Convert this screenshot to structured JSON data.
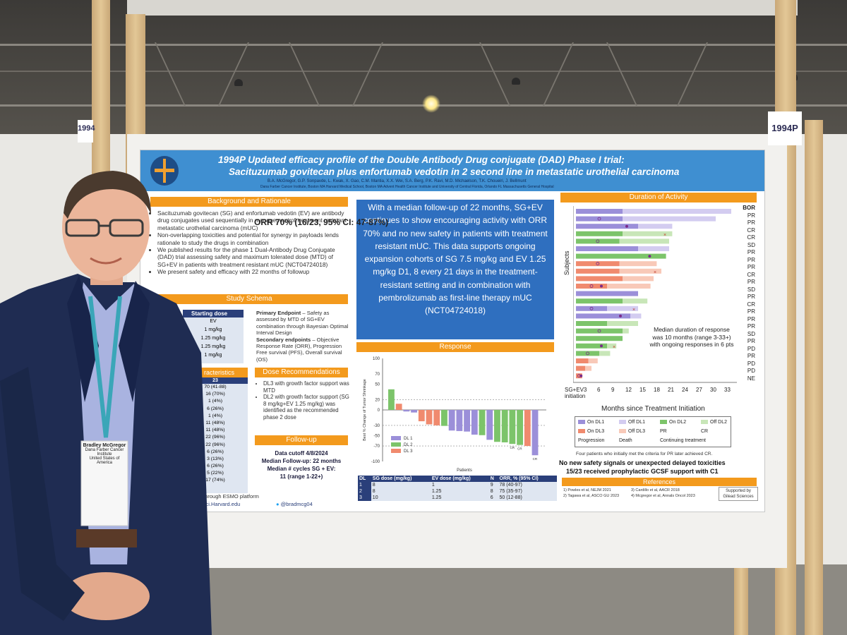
{
  "booth": {
    "number_right": "1994P",
    "number_left": "1994"
  },
  "poster": {
    "title_line1": "1994P Updated efficacy profile of the Double Antibody Drug conjugate (DAD) Phase I trial:",
    "title_line2": "Sacituzumab govitecan plus enfortumab vedotin in 2 second line in metastatic urothelial carcinoma",
    "authors": "B.A. McGregor, G.P. Sonpavde, L. Kwak, X. Gao, C.M. Mantia, X.X. Wei, S.A. Berg, P.K. Ravi, M.D. Michaelson, T.K. Choueiri, J. Bellmunt",
    "affiliations": "Dana Farber Cancer Institute, Boston MA  Harvard Medical School, Boston MA  Advent Health Cancer Institute and University of Central Florida, Orlando FL  Massachusetts General Hospital",
    "sections": {
      "background": "Background and Rationale",
      "schema": "Study Schema",
      "dose_rec": "Dose Recommendations",
      "followup": "Follow-up",
      "response": "Response",
      "duration": "Duration of Activity",
      "references": "References"
    },
    "background_bullets": [
      "Sacituzumab govitecan (SG) and enfortumab vedotin (EV) are antibody drug conjugates used sequentially in management of treatment resistant metastatic urothelial carcinoma (mUC)",
      "Non-overlapping toxicities and potential for synergy in payloads lends rationale to study the drugs in combination",
      "We published results for the phase 1 Dual-Antibody Drug Conjugate (DAD) trial assessing safety and maximum tolerated dose (MTD) of SG+EV in patients with treatment resistant mUC (NCT04724018)",
      "We present safety and efficacy with 22 months of followup"
    ],
    "schema": {
      "starting_dose": "Starting dose",
      "ev": "EV",
      "doses": [
        "1 mg/kg",
        "1.25 mg/kg",
        "1.25 mg/kg",
        "1 mg/kg"
      ],
      "primary_label": "Primary Endpoint",
      "primary_text": " – Safety as assessed by MTD of SG+EV combination through Bayesian Optimal Interval Design",
      "secondary_label": "Secondary endpoints",
      "secondary_text": " – Objective Response Rate (ORR), Progression Free survival (PFS), Overall survival (OS)"
    },
    "characteristics": {
      "header": "racteristics",
      "n": "23",
      "values": [
        "70 (41-88)",
        "16 (70%)",
        "1 (4%)",
        "6 (26%)",
        "1 (4%)",
        "11 (48%)",
        "11 (48%)",
        "22 (96%)",
        "22 (96%)",
        "6 (26%)",
        "3 (13%)",
        "6 (26%)",
        "5 (22%)",
        "17 (74%)"
      ]
    },
    "dose_recommendations": [
      "DL3 with growth factor support was MTD",
      "DL2 with growth factor support (SG 8 mg/kg+EV 1.25 mg/kg) was identified as the recommended phase 2 dose"
    ],
    "followup": {
      "cutoff": "Data cutoff 4/8/2024",
      "median_fu": "Median Follow-up: 22 months",
      "cycles": "Median # cycles SG + EV:",
      "cycles_range": "11 (range 1-22+)"
    },
    "footer_left": {
      "registered": "ered through ESMO platform",
      "email": "or@dfci.Harvard.edu",
      "twitter": "@bradmcg04"
    },
    "highlight": "With a median follow-up of 22 months, SG+EV continues to show encouraging activity with ORR 70% and no new safety in patients with treatment resistant mUC. This data supports ongoing expansion cohorts of SG 7.5 mg/kg and EV 1.25 mg/kg D1, 8 every 21 days in the treatment-resistant setting and in combination with pembrolizumab as first-line therapy mUC (NCT04724018)",
    "dose_table": {
      "headers": [
        "DL",
        "SG dose (mg/kg)",
        "EV dose (mg/kg)",
        "N",
        "ORR, % (95% CI)"
      ],
      "rows": [
        [
          "1",
          "8",
          "1",
          "9",
          "78 (40-97)"
        ],
        [
          "2",
          "8",
          "1.25",
          "8",
          "75 (35-97)"
        ],
        [
          "3",
          "10",
          "1.25",
          "6",
          "50 (12-88)"
        ]
      ]
    },
    "swimmer": {
      "ylabel": "Subjects",
      "xlabel": "Months since Treatment Initiation",
      "x_start_label": "SG+EV3 initiation",
      "bor_header": "BOR",
      "bor": [
        "PR",
        "PR",
        "CR",
        "CR",
        "SD",
        "PR",
        "PR",
        "PR",
        "CR",
        "PR",
        "SD",
        "PR",
        "CR",
        "PR",
        "PR",
        "PR",
        "SD",
        "PR",
        "PD",
        "PR",
        "PD",
        "PD",
        "NE"
      ],
      "median_note": "Median duration of response was 10 months (range 3-33+) with ongoing responses in 6 pts",
      "legend": [
        "On DL1",
        "Off DL1",
        "On DL2",
        "Off DL2",
        "On DL3",
        "Off DL3",
        "PR",
        "CR",
        "Progression",
        "Death",
        "Continuing treatment"
      ],
      "footnote": "Four patients who initially met the criteria for PR later achieved CR."
    },
    "safety_line1": "No new safety signals or unexpected delayed toxicities",
    "safety_line2": "15/23 received prophylactic GCSF support with C1",
    "references": [
      "1) Powles et al, NEJM 2021",
      "2) Tagawa et al, ASCO GU 2023",
      "3) Cardillo et al, AACR 2018",
      "4) Mcgregor et al, Annals Oncol 2023"
    ],
    "support": "Supported by Gilead Sciences",
    "badge": {
      "name": "Bradley McGregor",
      "org": "Dana Farber Cancer Institute",
      "country": "United States of America"
    }
  },
  "chart_data": [
    {
      "type": "bar",
      "title": "ORR 70% (16/23, 95% CI: 47-87%)",
      "xlabel": "Patients",
      "ylabel": "Best % Change of Tumor Shrinkage",
      "ylim": [
        -100,
        100
      ],
      "yticks": [
        "100",
        "70",
        "50",
        "20",
        "0",
        "-30",
        "-50",
        "-70",
        "-100"
      ],
      "legend": [
        "DL 1",
        "DL 2",
        "DL 3"
      ],
      "dose_level_colors": {
        "DL 1": "#9b8fd9",
        "DL 2": "#7cc46a",
        "DL 3": "#f08a6e"
      },
      "bars": [
        {
          "dl": "DL 2",
          "value": 40
        },
        {
          "dl": "DL 3",
          "value": 12
        },
        {
          "dl": "DL 1",
          "value": -3
        },
        {
          "dl": "DL 1",
          "value": -5
        },
        {
          "dl": "DL 3",
          "value": -22
        },
        {
          "dl": "DL 3",
          "value": -28
        },
        {
          "dl": "DL 3",
          "value": -30
        },
        {
          "dl": "DL 2",
          "value": -31
        },
        {
          "dl": "DL 1",
          "value": -40
        },
        {
          "dl": "DL 1",
          "value": -41
        },
        {
          "dl": "DL 1",
          "value": -42
        },
        {
          "dl": "DL 1",
          "value": -48
        },
        {
          "dl": "DL 2",
          "value": -49
        },
        {
          "dl": "DL 1",
          "value": -58
        },
        {
          "dl": "DL 2",
          "value": -62
        },
        {
          "dl": "DL 2",
          "value": -63
        },
        {
          "dl": "DL 2",
          "value": -66
        },
        {
          "dl": "DL 2",
          "value": -68
        },
        {
          "dl": "DL 3",
          "value": -70
        },
        {
          "dl": "DL 1",
          "value": -88
        }
      ],
      "annotations": [
        "CR",
        "CR",
        "CR"
      ]
    }
  ]
}
